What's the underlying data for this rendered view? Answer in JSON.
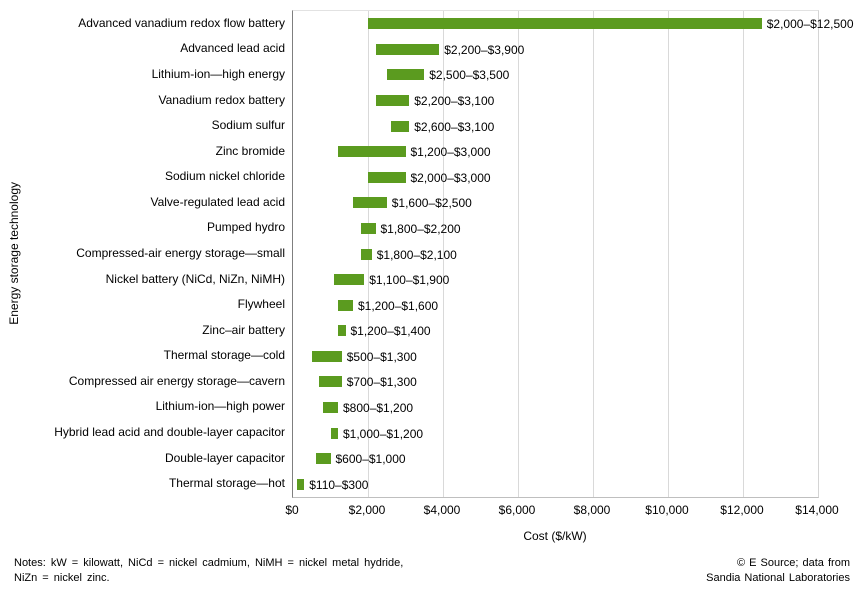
{
  "chart_data": {
    "type": "bar",
    "subtype": "horizontal-range",
    "title": "",
    "xlabel": "Cost ($/kW)",
    "ylabel": "Energy storage technology",
    "xlim": [
      0,
      14000
    ],
    "xtick_values": [
      0,
      2000,
      4000,
      6000,
      8000,
      10000,
      12000,
      14000
    ],
    "xtick_labels": [
      "$0",
      "$2,000",
      "$4,000",
      "$6,000",
      "$8,000",
      "$10,000",
      "$12,000",
      "$14,000"
    ],
    "grid": "vertical",
    "legend": "none",
    "bar_color": "#5b9b1f",
    "axis_line_color": "#7f7f7f",
    "gridline_color": "#d9d9d9",
    "bars": [
      {
        "category": "Advanced vanadium redox flow battery",
        "min": 2000,
        "max": 12500,
        "label": "$2,000–$12,500"
      },
      {
        "category": "Advanced lead acid",
        "min": 2200,
        "max": 3900,
        "label": "$2,200–$3,900"
      },
      {
        "category": "Lithium-ion—high energy",
        "min": 2500,
        "max": 3500,
        "label": "$2,500–$3,500"
      },
      {
        "category": "Vanadium redox battery",
        "min": 2200,
        "max": 3100,
        "label": "$2,200–$3,100"
      },
      {
        "category": "Sodium sulfur",
        "min": 2600,
        "max": 3100,
        "label": "$2,600–$3,100"
      },
      {
        "category": "Zinc bromide",
        "min": 1200,
        "max": 3000,
        "label": "$1,200–$3,000"
      },
      {
        "category": "Sodium nickel chloride",
        "min": 2000,
        "max": 3000,
        "label": "$2,000–$3,000"
      },
      {
        "category": "Valve-regulated lead acid",
        "min": 1600,
        "max": 2500,
        "label": "$1,600–$2,500"
      },
      {
        "category": "Pumped hydro",
        "min": 1800,
        "max": 2200,
        "label": "$1,800–$2,200"
      },
      {
        "category": "Compressed-air energy storage—small",
        "min": 1800,
        "max": 2100,
        "label": "$1,800–$2,100"
      },
      {
        "category": "Nickel battery (NiCd, NiZn, NiMH)",
        "min": 1100,
        "max": 1900,
        "label": "$1,100–$1,900"
      },
      {
        "category": "Flywheel",
        "min": 1200,
        "max": 1600,
        "label": "$1,200–$1,600"
      },
      {
        "category": "Zinc–air battery",
        "min": 1200,
        "max": 1400,
        "label": "$1,200–$1,400"
      },
      {
        "category": "Thermal storage—cold",
        "min": 500,
        "max": 1300,
        "label": "$500–$1,300"
      },
      {
        "category": "Compressed air energy storage—cavern",
        "min": 700,
        "max": 1300,
        "label": "$700–$1,300"
      },
      {
        "category": "Lithium-ion—high power",
        "min": 800,
        "max": 1200,
        "label": "$800–$1,200"
      },
      {
        "category": "Hybrid lead acid and double-layer capacitor",
        "min": 1000,
        "max": 1200,
        "label": "$1,000–$1,200"
      },
      {
        "category": "Double-layer capacitor",
        "min": 600,
        "max": 1000,
        "label": "$600–$1,000"
      },
      {
        "category": "Thermal storage—hot",
        "min": 110,
        "max": 300,
        "label": "$110–$300"
      }
    ]
  },
  "footer": {
    "notes_line1": "Notes: kW = kilowatt, NiCd = nickel cadmium, NiMH = nickel metal hydride,",
    "notes_line2": "NiZn = nickel zinc.",
    "credit_line1": "© E Source; data from",
    "credit_line2": "Sandia National Laboratories"
  }
}
